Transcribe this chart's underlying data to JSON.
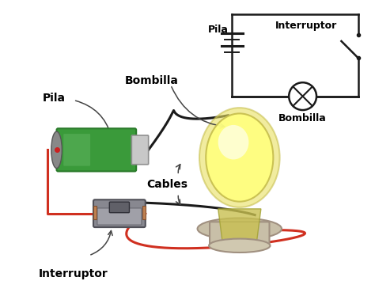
{
  "bg_color": "#ffffff",
  "wire_color_black": "#1a1a1a",
  "wire_color_red": "#d03020",
  "battery_green_light": "#5ab05a",
  "battery_green_dark": "#2a7a2a",
  "battery_green_mid": "#3a9a3a",
  "battery_cap_color": "#c8c8c8",
  "battery_cap_dark": "#909090",
  "bulb_yellow_bright": "#ffff80",
  "bulb_yellow_mid": "#f0e840",
  "bulb_yellow_outer": "#e8e060",
  "bulb_base_color": "#c8bfa8",
  "bulb_base_dark": "#a09080",
  "switch_gray": "#909098",
  "switch_dark": "#606068",
  "switch_brown": "#c08050",
  "schematic_line_color": "#1a1a1a",
  "text_color": "#000000",
  "arrow_color": "#444444",
  "font_size_labels": 10,
  "font_size_schematic": 9,
  "label_pila_main": "Pila",
  "label_bombilla_arrow": "Bombilla",
  "label_cables": "Cables",
  "label_interruptor": "Interruptor",
  "label_pila_schematic": "Pila",
  "label_interruptor_schematic": "Interruptor",
  "label_bombilla_schematic": "Bombilla"
}
